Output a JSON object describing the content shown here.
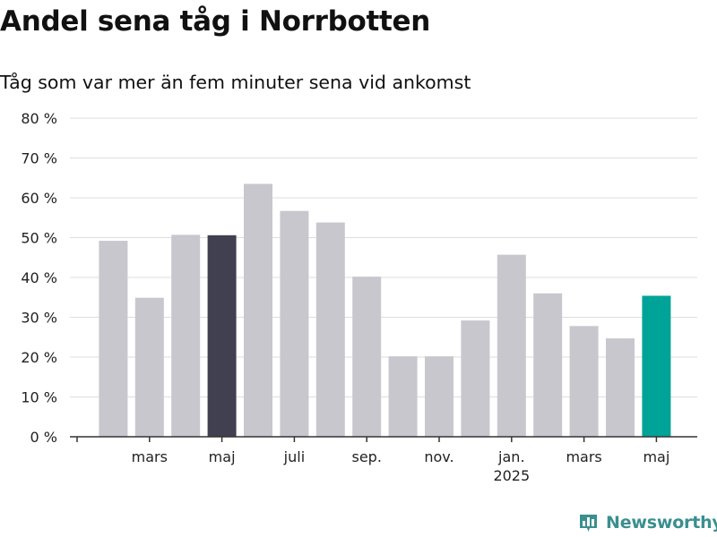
{
  "header": {
    "title": "Andel sena tåg i Norrbotten",
    "subtitle": "Tåg som var mer än fem minuter sena vid ankomst"
  },
  "brand": {
    "name": "Newsworthy",
    "icon": "bar-chart-logo-icon",
    "color": "#3a8f8f"
  },
  "colors": {
    "default_bar": "#c8c7ce",
    "highlight_previous": "#414050",
    "highlight_latest": "#00a398",
    "grid": "#dedede",
    "axis": "#333333"
  },
  "chart_data": {
    "type": "bar",
    "title": "Andel sena tåg i Norrbotten",
    "subtitle": "Tåg som var mer än fem minuter sena vid ankomst",
    "xlabel": "",
    "ylabel": "",
    "ylim": [
      0,
      80
    ],
    "yticks": [
      "0 %",
      "10 %",
      "20 %",
      "30 %",
      "40 %",
      "50 %",
      "60 %",
      "70 %",
      "80 %"
    ],
    "grid": true,
    "categories": [
      "2024-02",
      "2024-03",
      "2024-04",
      "2024-05",
      "2024-06",
      "2024-07",
      "2024-08",
      "2024-09",
      "2024-10",
      "2024-11",
      "2024-12",
      "2025-01",
      "2025-02",
      "2025-03",
      "2025-04",
      "2025-05"
    ],
    "values": [
      49.2,
      34.9,
      50.7,
      50.6,
      63.5,
      56.7,
      53.8,
      40.2,
      20.2,
      20.2,
      29.2,
      45.7,
      36.0,
      27.8,
      24.7,
      35.4
    ],
    "highlight": {
      "2024-05": "previous",
      "2025-05": "latest"
    },
    "x_tick_labels": [
      {
        "month": "2024-03",
        "label": "mars"
      },
      {
        "month": "2024-05",
        "label": "maj"
      },
      {
        "month": "2024-07",
        "label": "juli"
      },
      {
        "month": "2024-09",
        "label": "sep."
      },
      {
        "month": "2024-11",
        "label": "nov."
      },
      {
        "month": "2025-01",
        "label": "jan.",
        "sublabel": "2025"
      },
      {
        "month": "2025-03",
        "label": "mars"
      },
      {
        "month": "2025-05",
        "label": "maj"
      }
    ]
  }
}
